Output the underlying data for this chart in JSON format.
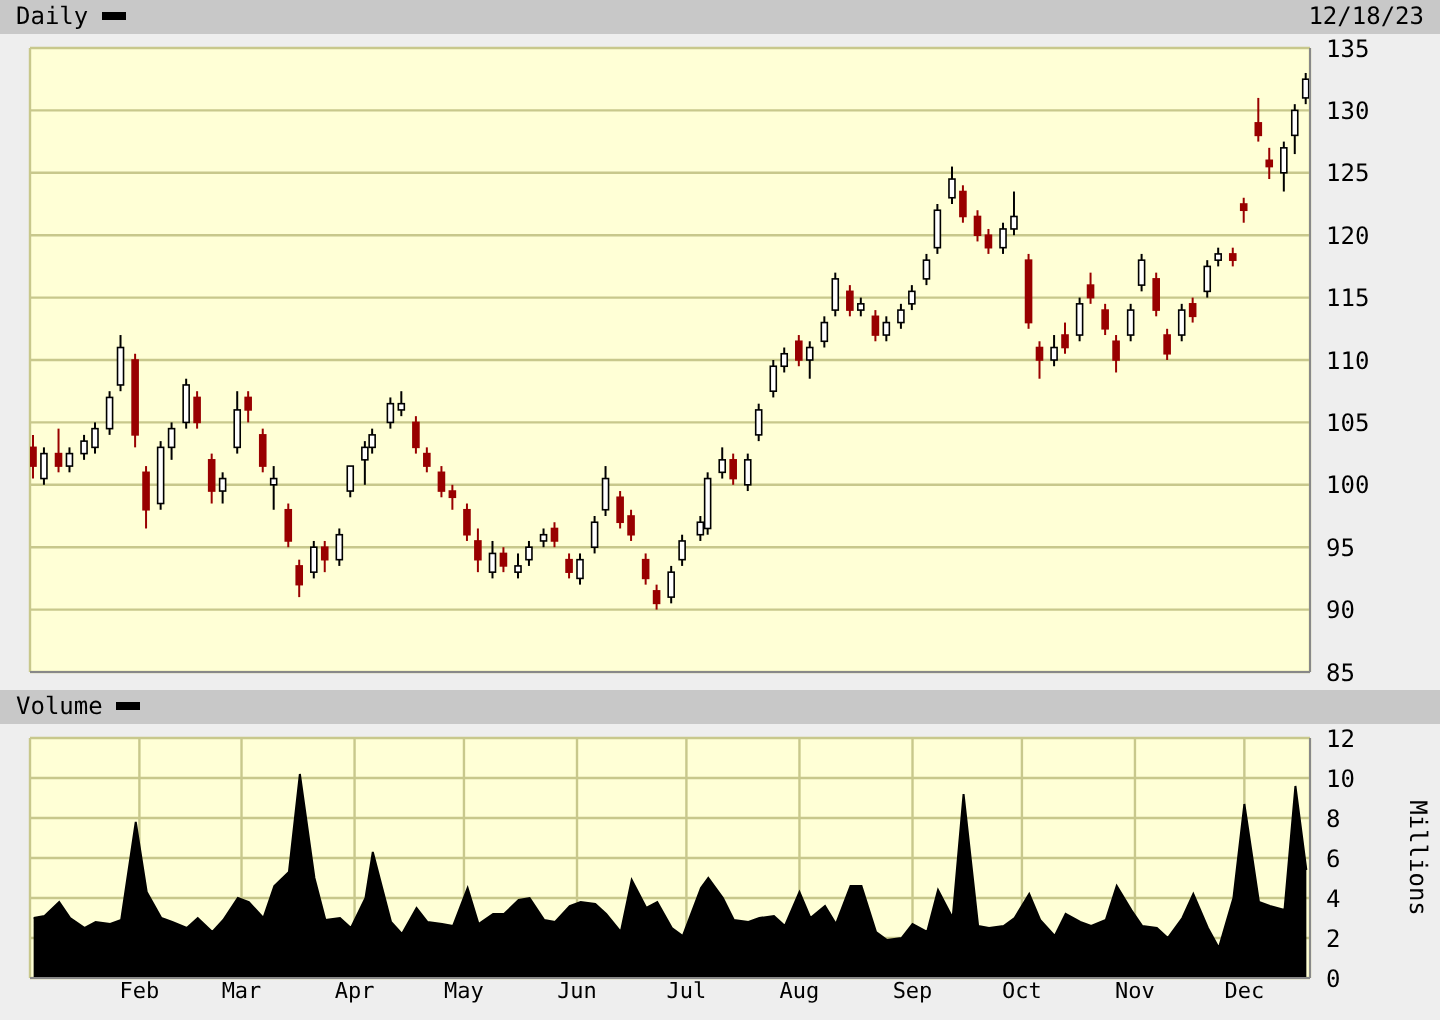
{
  "chart_data": [
    {
      "type": "candlestick",
      "title": "Daily",
      "annotations": [
        "12/18/23"
      ],
      "tick_labels": "y",
      "grid": true,
      "x": [
        "--01-03",
        "--01-06",
        "--01-10",
        "--01-13",
        "--01-17",
        "--01-20",
        "--01-24",
        "--01-27",
        "--01-31",
        "--02-03",
        "--02-07",
        "--02-10",
        "--02-14",
        "--02-17",
        "--02-21",
        "--02-24",
        "--02-28",
        "--03-03",
        "--03-07",
        "--03-10",
        "--03-14",
        "--03-17",
        "--03-21",
        "--03-24",
        "--03-28",
        "--03-31",
        "--04-04",
        "--04-06",
        "--04-11",
        "--04-14",
        "--04-18",
        "--04-21",
        "--04-25",
        "--04-28",
        "--05-02",
        "--05-05",
        "--05-09",
        "--05-12",
        "--05-16",
        "--05-19",
        "--05-23",
        "--05-26",
        "--05-30",
        "--06-02",
        "--06-06",
        "--06-09",
        "--06-13",
        "--06-16",
        "--06-20",
        "--06-23",
        "--06-27",
        "--06-30",
        "--07-05",
        "--07-07",
        "--07-11",
        "--07-14",
        "--07-18",
        "--07-21",
        "--07-25",
        "--07-28",
        "--08-01",
        "--08-04",
        "--08-08",
        "--08-11",
        "--08-15",
        "--08-18",
        "--08-22",
        "--08-25",
        "--08-29",
        "--09-01",
        "--09-05",
        "--09-08",
        "--09-12",
        "--09-15",
        "--09-19",
        "--09-22",
        "--09-26",
        "--09-29",
        "--10-03",
        "--10-06",
        "--10-10",
        "--10-13",
        "--10-17",
        "--10-20",
        "--10-24",
        "--10-27",
        "--10-31",
        "--11-03",
        "--11-07",
        "--11-10",
        "--11-14",
        "--11-17",
        "--11-21",
        "--11-24",
        "--11-28",
        "--12-01",
        "--12-05",
        "--12-08",
        "--12-12",
        "--12-15",
        "--12-18"
      ],
      "ohlc": [
        [
          103,
          104,
          100.5,
          101.5
        ],
        [
          100.5,
          103,
          100,
          102.5
        ],
        [
          102.5,
          104.5,
          101,
          101.5
        ],
        [
          101.5,
          103,
          101,
          102.5
        ],
        [
          102.5,
          104,
          102,
          103.5
        ],
        [
          103,
          105,
          102.5,
          104.5
        ],
        [
          104.5,
          107.5,
          104,
          107
        ],
        [
          108,
          112,
          107.5,
          111
        ],
        [
          110,
          110.5,
          103,
          104
        ],
        [
          101,
          101.5,
          96.5,
          98
        ],
        [
          98.5,
          103.5,
          98,
          103
        ],
        [
          103,
          105,
          102,
          104.5
        ],
        [
          105,
          108.5,
          104.5,
          108
        ],
        [
          107,
          107.5,
          104.5,
          105
        ],
        [
          102,
          102.5,
          98.5,
          99.5
        ],
        [
          99.5,
          101,
          98.5,
          100.5
        ],
        [
          103,
          107.5,
          102.5,
          106
        ],
        [
          107,
          107.5,
          105,
          106
        ],
        [
          104,
          104.5,
          101,
          101.5
        ],
        [
          100,
          101.5,
          98,
          100.5
        ],
        [
          98,
          98.5,
          95,
          95.5
        ],
        [
          93.5,
          94,
          91,
          92
        ],
        [
          93,
          95.5,
          92.5,
          95
        ],
        [
          95,
          95.5,
          93,
          94
        ],
        [
          94,
          96.5,
          93.5,
          96
        ],
        [
          99.5,
          101.5,
          99,
          101.5
        ],
        [
          102,
          103.5,
          100,
          103
        ],
        [
          103,
          104.5,
          102.5,
          104
        ],
        [
          105,
          107,
          104.5,
          106.5
        ],
        [
          106,
          107.5,
          105.5,
          106.5
        ],
        [
          105,
          105.5,
          102.5,
          103
        ],
        [
          102.5,
          103,
          101,
          101.5
        ],
        [
          101,
          101.5,
          99,
          99.5
        ],
        [
          99.5,
          100,
          98,
          99
        ],
        [
          98,
          98.5,
          95.5,
          96
        ],
        [
          95.5,
          96.5,
          93,
          94
        ],
        [
          93,
          95.5,
          92.5,
          94.5
        ],
        [
          94.5,
          95,
          93,
          93.5
        ],
        [
          93,
          94.5,
          92.5,
          93.5
        ],
        [
          94,
          95.5,
          93.5,
          95
        ],
        [
          95.5,
          96.5,
          95,
          96
        ],
        [
          96.5,
          97,
          95,
          95.5
        ],
        [
          94,
          94.5,
          92.5,
          93
        ],
        [
          92.5,
          94.5,
          92,
          94
        ],
        [
          95,
          97.5,
          94.5,
          97
        ],
        [
          98,
          101.5,
          97.5,
          100.5
        ],
        [
          99,
          99.5,
          96.5,
          97
        ],
        [
          97.5,
          98,
          95.5,
          96
        ],
        [
          94,
          94.5,
          92,
          92.5
        ],
        [
          91.5,
          92,
          90,
          90.5
        ],
        [
          91,
          93.5,
          90.5,
          93
        ],
        [
          94,
          96,
          93.5,
          95.5
        ],
        [
          96,
          97.5,
          95.5,
          97
        ],
        [
          96.5,
          101,
          96,
          100.5
        ],
        [
          101,
          103,
          100.5,
          102
        ],
        [
          102,
          102.5,
          100,
          100.5
        ],
        [
          100,
          102.5,
          99.5,
          102
        ],
        [
          104,
          106.5,
          103.5,
          106
        ],
        [
          107.5,
          110,
          107,
          109.5
        ],
        [
          109.5,
          111,
          109,
          110.5
        ],
        [
          111.5,
          112,
          109.5,
          110
        ],
        [
          110,
          111.5,
          108.5,
          111
        ],
        [
          111.5,
          113.5,
          111,
          113
        ],
        [
          114,
          117,
          113.5,
          116.5
        ],
        [
          115.5,
          116,
          113.5,
          114
        ],
        [
          114,
          115,
          113.5,
          114.5
        ],
        [
          113.5,
          114,
          111.5,
          112
        ],
        [
          112,
          113.5,
          111.5,
          113
        ],
        [
          113,
          114.5,
          112.5,
          114
        ],
        [
          114.5,
          116,
          114,
          115.5
        ],
        [
          116.5,
          118.5,
          116,
          118
        ],
        [
          119,
          122.5,
          118.5,
          122
        ],
        [
          123,
          125.5,
          122.5,
          124.5
        ],
        [
          123.5,
          124,
          121,
          121.5
        ],
        [
          121.5,
          122,
          119.5,
          120
        ],
        [
          120,
          120.5,
          118.5,
          119
        ],
        [
          119,
          121,
          118.5,
          120.5
        ],
        [
          120.5,
          123.5,
          120,
          121.5
        ],
        [
          118,
          118.5,
          112.5,
          113
        ],
        [
          111,
          111.5,
          108.5,
          110
        ],
        [
          110,
          112,
          109.5,
          111
        ],
        [
          112,
          113,
          110.5,
          111
        ],
        [
          112,
          115,
          111.5,
          114.5
        ],
        [
          116,
          117,
          114.5,
          115
        ],
        [
          114,
          114.5,
          112,
          112.5
        ],
        [
          111.5,
          112,
          109,
          110
        ],
        [
          112,
          114.5,
          111.5,
          114
        ],
        [
          116,
          118.5,
          115.5,
          118
        ],
        [
          116.5,
          117,
          113.5,
          114
        ],
        [
          112,
          112.5,
          110,
          110.5
        ],
        [
          112,
          114.5,
          111.5,
          114
        ],
        [
          114.5,
          115,
          113,
          113.5
        ],
        [
          115.5,
          118,
          115,
          117.5
        ],
        [
          118,
          119,
          117.5,
          118.5
        ],
        [
          118.5,
          119,
          117.5,
          118
        ],
        [
          122.5,
          123,
          121,
          122
        ],
        [
          129,
          131,
          127.5,
          128
        ],
        [
          126,
          127,
          124.5,
          125.5
        ],
        [
          125,
          127.5,
          123.5,
          127
        ],
        [
          128,
          130.5,
          126.5,
          130
        ],
        [
          131,
          133,
          130.5,
          132.5
        ]
      ],
      "colors": [
        "#990000",
        "#ffffff",
        "#990000",
        "#ffffff",
        "#ffffff",
        "#ffffff",
        "#ffffff",
        "#ffffff",
        "#990000",
        "#990000",
        "#ffffff",
        "#ffffff",
        "#ffffff",
        "#990000",
        "#990000",
        "#ffffff",
        "#ffffff",
        "#990000",
        "#990000",
        "#ffffff",
        "#990000",
        "#990000",
        "#ffffff",
        "#990000",
        "#ffffff",
        "#ffffff",
        "#ffffff",
        "#ffffff",
        "#ffffff",
        "#ffffff",
        "#990000",
        "#990000",
        "#990000",
        "#990000",
        "#990000",
        "#990000",
        "#ffffff",
        "#990000",
        "#ffffff",
        "#ffffff",
        "#ffffff",
        "#990000",
        "#990000",
        "#ffffff",
        "#ffffff",
        "#ffffff",
        "#990000",
        "#990000",
        "#990000",
        "#990000",
        "#ffffff",
        "#ffffff",
        "#ffffff",
        "#ffffff",
        "#ffffff",
        "#990000",
        "#ffffff",
        "#ffffff",
        "#ffffff",
        "#ffffff",
        "#990000",
        "#ffffff",
        "#ffffff",
        "#ffffff",
        "#990000",
        "#ffffff",
        "#990000",
        "#ffffff",
        "#ffffff",
        "#ffffff",
        "#ffffff",
        "#ffffff",
        "#ffffff",
        "#990000",
        "#990000",
        "#990000",
        "#ffffff",
        "#ffffff",
        "#990000",
        "#990000",
        "#ffffff",
        "#990000",
        "#ffffff",
        "#990000",
        "#990000",
        "#990000",
        "#ffffff",
        "#ffffff",
        "#990000",
        "#990000",
        "#ffffff",
        "#990000",
        "#ffffff",
        "#ffffff",
        "#990000",
        "#990000",
        "#990000",
        "#990000",
        "#ffffff",
        "#ffffff",
        "#ffffff"
      ],
      "xlim": [
        "--01-02",
        "--12-19"
      ],
      "xticks": [
        {
          "value": "--02-01",
          "label": null
        },
        {
          "value": "--03-01",
          "label": null
        },
        {
          "value": "--04-01",
          "label": null
        },
        {
          "value": "--05-01",
          "label": null
        },
        {
          "value": "--06-01",
          "label": null
        },
        {
          "value": "--07-01",
          "label": null
        },
        {
          "value": "--08-01",
          "label": null
        },
        {
          "value": "--09-01",
          "label": null
        },
        {
          "value": "--10-01",
          "label": null
        },
        {
          "value": "--11-01",
          "label": null
        },
        {
          "value": "--12-01",
          "label": null
        }
      ],
      "ylim": [
        85,
        135
      ],
      "yticks": [
        85,
        90,
        95,
        100,
        105,
        110,
        115,
        120,
        125,
        130,
        135
      ]
    },
    {
      "type": "area",
      "title": "Volume",
      "ylabel": "Millions",
      "grid": true,
      "x": [
        "--01-03",
        "--01-06",
        "--01-10",
        "--01-13",
        "--01-17",
        "--01-20",
        "--01-24",
        "--01-27",
        "--01-31",
        "--02-03",
        "--02-07",
        "--02-10",
        "--02-14",
        "--02-17",
        "--02-21",
        "--02-24",
        "--02-28",
        "--03-03",
        "--03-07",
        "--03-10",
        "--03-14",
        "--03-17",
        "--03-21",
        "--03-24",
        "--03-28",
        "--03-31",
        "--04-04",
        "--04-06",
        "--04-11",
        "--04-14",
        "--04-18",
        "--04-21",
        "--04-25",
        "--04-28",
        "--05-02",
        "--05-05",
        "--05-09",
        "--05-12",
        "--05-16",
        "--05-19",
        "--05-23",
        "--05-26",
        "--05-30",
        "--06-02",
        "--06-06",
        "--06-09",
        "--06-13",
        "--06-16",
        "--06-20",
        "--06-23",
        "--06-27",
        "--06-30",
        "--07-05",
        "--07-07",
        "--07-11",
        "--07-14",
        "--07-18",
        "--07-21",
        "--07-25",
        "--07-28",
        "--08-01",
        "--08-04",
        "--08-08",
        "--08-11",
        "--08-15",
        "--08-18",
        "--08-22",
        "--08-25",
        "--08-29",
        "--09-01",
        "--09-05",
        "--09-08",
        "--09-12",
        "--09-15",
        "--09-19",
        "--09-22",
        "--09-26",
        "--09-29",
        "--10-03",
        "--10-06",
        "--10-10",
        "--10-13",
        "--10-17",
        "--10-20",
        "--10-24",
        "--10-27",
        "--10-31",
        "--11-03",
        "--11-07",
        "--11-10",
        "--11-14",
        "--11-17",
        "--11-21",
        "--11-24",
        "--11-28",
        "--12-01",
        "--12-05",
        "--12-08",
        "--12-12",
        "--12-15",
        "--12-18"
      ],
      "series": [
        {
          "color": "#000000",
          "values": [
            3.0,
            3.1,
            3.8,
            3.0,
            2.5,
            2.8,
            2.7,
            2.9,
            7.8,
            4.3,
            3.0,
            2.8,
            2.5,
            3.0,
            2.3,
            2.9,
            4.0,
            3.8,
            3.0,
            4.6,
            5.3,
            10.2,
            5.0,
            2.9,
            3.0,
            2.5,
            4.0,
            6.3,
            2.8,
            2.2,
            3.5,
            2.8,
            2.7,
            2.6,
            4.5,
            2.7,
            3.2,
            3.2,
            3.9,
            4.0,
            2.9,
            2.8,
            3.6,
            3.8,
            3.7,
            3.2,
            2.3,
            4.9,
            3.5,
            3.8,
            2.5,
            2.1,
            4.5,
            5.0,
            4.0,
            2.9,
            2.8,
            3.0,
            3.1,
            2.6,
            4.3,
            3.0,
            3.6,
            2.7,
            4.6,
            4.6,
            2.3,
            1.9,
            2.0,
            2.7,
            2.3,
            4.4,
            3.0,
            9.2,
            2.6,
            2.5,
            2.6,
            3.0,
            4.2,
            2.9,
            2.1,
            3.2,
            2.8,
            2.6,
            2.9,
            4.6,
            3.4,
            2.6,
            2.5,
            2.0,
            3.0,
            4.2,
            2.5,
            1.5,
            4.0,
            8.7,
            3.8,
            3.6,
            3.4,
            9.6,
            5.4
          ]
        }
      ],
      "xlim": [
        "--01-02",
        "--12-19"
      ],
      "xticks": [
        {
          "value": "--02-01",
          "label": "Feb"
        },
        {
          "value": "--03-01",
          "label": "Mar"
        },
        {
          "value": "--04-01",
          "label": "Apr"
        },
        {
          "value": "--05-01",
          "label": "May"
        },
        {
          "value": "--06-01",
          "label": "Jun"
        },
        {
          "value": "--07-01",
          "label": "Jul"
        },
        {
          "value": "--08-01",
          "label": "Aug"
        },
        {
          "value": "--09-01",
          "label": "Sep"
        },
        {
          "value": "--10-01",
          "label": "Oct"
        },
        {
          "value": "--11-01",
          "label": "Nov"
        },
        {
          "value": "--12-01",
          "label": "Dec"
        }
      ],
      "ylim": [
        0,
        12
      ],
      "yticks": [
        0,
        2,
        4,
        6,
        8,
        10,
        12
      ]
    }
  ]
}
